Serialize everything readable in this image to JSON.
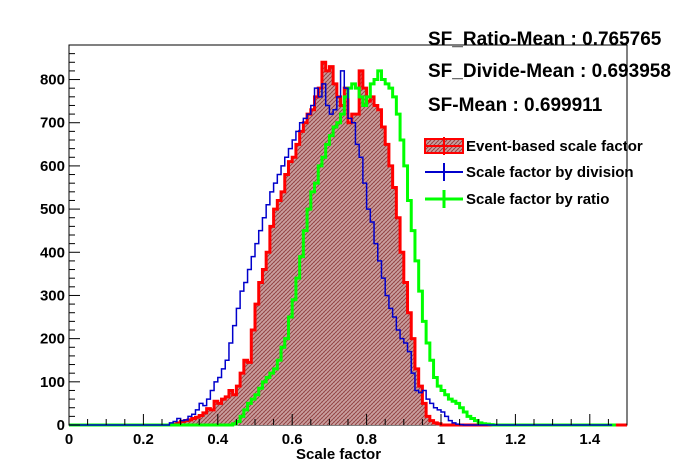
{
  "chart_data": {
    "type": "histogram",
    "xlabel": "Scale factor",
    "ylabel": "",
    "xlim": [
      0,
      1.5
    ],
    "ylim": [
      0,
      880
    ],
    "x_ticks": [
      "0",
      "0.2",
      "0.4",
      "0.6",
      "0.8",
      "1",
      "1.2",
      "1.4"
    ],
    "y_ticks": [
      "0",
      "100",
      "200",
      "300",
      "400",
      "500",
      "600",
      "700",
      "800"
    ],
    "bin_width": 0.01,
    "series": [
      {
        "name": "Event-based scale factor",
        "color": "#ff0000",
        "style": "filled-hatched",
        "x_start": 0.0,
        "values": [
          0,
          0,
          0,
          0,
          0,
          0,
          0,
          0,
          0,
          0,
          0,
          0,
          0,
          0,
          0,
          0,
          0,
          0,
          0,
          0,
          0,
          0,
          0,
          0,
          0,
          0,
          0,
          0,
          2,
          5,
          8,
          10,
          12,
          15,
          18,
          22,
          28,
          38,
          35,
          55,
          50,
          60,
          65,
          80,
          70,
          90,
          120,
          150,
          145,
          220,
          280,
          330,
          360,
          400,
          460,
          500,
          520,
          540,
          580,
          610,
          620,
          650,
          680,
          700,
          720,
          730,
          760,
          780,
          840,
          820,
          830,
          790,
          760,
          740,
          780,
          700,
          720,
          720,
          820,
          780,
          750,
          760,
          740,
          730,
          690,
          650,
          600,
          550,
          480,
          400,
          330,
          260,
          200,
          130,
          90,
          50,
          20,
          10,
          5,
          3,
          0,
          0,
          0,
          0,
          0,
          0,
          0,
          0,
          0,
          0,
          0,
          0,
          0,
          0,
          0,
          0,
          0,
          0,
          0,
          0,
          0,
          0,
          0,
          0,
          0,
          0,
          0,
          0,
          0,
          0,
          0,
          0,
          0,
          0,
          0,
          0,
          0,
          0,
          0,
          0,
          0,
          0,
          0,
          0,
          0,
          0,
          0,
          0,
          0,
          0
        ]
      },
      {
        "name": "Scale factor by division",
        "color": "#0000cc",
        "style": "step-line",
        "x_start": 0.0,
        "values": [
          0,
          0,
          0,
          0,
          0,
          0,
          0,
          0,
          0,
          0,
          0,
          0,
          0,
          0,
          0,
          0,
          0,
          0,
          0,
          0,
          0,
          0,
          0,
          0,
          0,
          0,
          0,
          5,
          8,
          15,
          10,
          12,
          20,
          25,
          35,
          50,
          45,
          60,
          80,
          100,
          110,
          130,
          150,
          190,
          230,
          270,
          310,
          330,
          360,
          390,
          420,
          450,
          480,
          510,
          540,
          560,
          580,
          600,
          620,
          640,
          660,
          680,
          700,
          710,
          720,
          740,
          780,
          760,
          790,
          740,
          720,
          730,
          760,
          820,
          780,
          710,
          700,
          650,
          620,
          560,
          500,
          470,
          420,
          380,
          340,
          300,
          270,
          250,
          220,
          200,
          190,
          170,
          120,
          80,
          75,
          80,
          60,
          50,
          40,
          35,
          30,
          20,
          10,
          5,
          2,
          1,
          0,
          0,
          0,
          0,
          0,
          0,
          0,
          0,
          0,
          0,
          0,
          0,
          0,
          0,
          0,
          0,
          0,
          0,
          0,
          0,
          0,
          0,
          0,
          0,
          0,
          0,
          0,
          0,
          0,
          0,
          0,
          0,
          0,
          0,
          0,
          0,
          0,
          0,
          0,
          0
        ]
      },
      {
        "name": "Scale factor by ratio",
        "color": "#00ff00",
        "style": "step-line",
        "x_start": 0.0,
        "values": [
          0,
          0,
          0,
          0,
          0,
          0,
          0,
          0,
          0,
          0,
          0,
          0,
          0,
          0,
          0,
          0,
          0,
          0,
          0,
          0,
          0,
          0,
          0,
          0,
          0,
          0,
          0,
          0,
          0,
          0,
          0,
          0,
          0,
          0,
          0,
          0,
          0,
          0,
          0,
          0,
          0,
          0,
          0,
          0,
          3,
          8,
          20,
          35,
          50,
          60,
          70,
          85,
          100,
          110,
          120,
          130,
          150,
          180,
          200,
          250,
          290,
          340,
          390,
          450,
          500,
          540,
          560,
          600,
          620,
          650,
          670,
          690,
          700,
          720,
          760,
          780,
          790,
          780,
          760,
          740,
          760,
          790,
          800,
          820,
          800,
          790,
          780,
          760,
          720,
          660,
          600,
          520,
          450,
          380,
          310,
          240,
          190,
          150,
          110,
          90,
          80,
          70,
          60,
          55,
          50,
          40,
          30,
          20,
          15,
          10,
          5,
          3,
          2,
          1,
          0,
          0,
          0,
          0,
          0,
          0,
          0,
          0,
          0,
          0,
          0,
          0,
          0,
          0,
          0,
          0,
          0,
          0,
          0,
          0,
          0,
          0,
          0,
          0,
          0,
          0,
          0,
          0,
          0,
          0,
          0,
          0,
          0
        ]
      }
    ],
    "stats": [
      "SF_Ratio-Mean : 0.765765",
      "SF_Divide-Mean : 0.693958",
      "SF-Mean : 0.699911"
    ],
    "legend_position": "top-right",
    "grid": false
  }
}
